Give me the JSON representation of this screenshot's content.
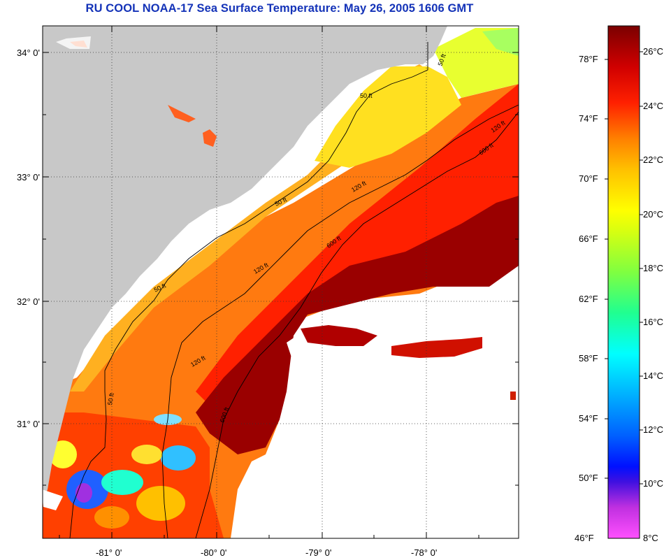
{
  "title": "RU COOL  NOAA-17  Sea Surface Temperature:  May 26, 2005 1606 GMT",
  "lat_labels": [
    "34° 0'",
    "33° 0'",
    "32° 0'",
    "31° 0'"
  ],
  "lon_labels": [
    "-81° 0'",
    "-80° 0'",
    "-79° 0'",
    "-78° 0'"
  ],
  "contours": {
    "c50": "50 ft",
    "c120": "120 ft",
    "c600": "600 ft"
  },
  "colorbar": {
    "fahrenheit": [
      "78°F",
      "74°F",
      "70°F",
      "66°F",
      "62°F",
      "58°F",
      "54°F",
      "50°F",
      "46°F"
    ],
    "celsius": [
      "26°C",
      "24°C",
      "22°C",
      "20°C",
      "18°C",
      "16°C",
      "14°C",
      "12°C",
      "10°C",
      "8°C"
    ],
    "colors": [
      "#7a0000",
      "#c00000",
      "#ff0000",
      "#ff6a00",
      "#ffa000",
      "#ffd000",
      "#ffff00",
      "#b0ff30",
      "#30ff80",
      "#00ffff",
      "#00b0ff",
      "#0050ff",
      "#0000ff",
      "#7a20d0",
      "#ff40ff"
    ]
  }
}
